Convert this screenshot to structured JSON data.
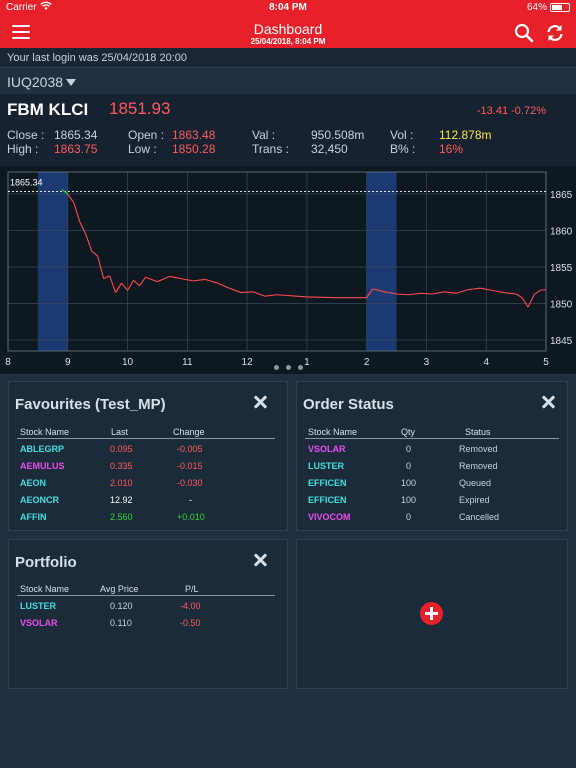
{
  "status_bar": {
    "carrier": "Carrier",
    "time": "8:04 PM",
    "battery": "64%",
    "battery_level": 0.64
  },
  "header": {
    "title": "Dashboard",
    "subtitle": "25/04/2018, 8:04 PM"
  },
  "login_notice": "Your last login was 25/04/2018 20:00",
  "index_selector": "IUQ2038",
  "quote": {
    "name": "FBM KLCI",
    "value": "1851.93",
    "change": "-13.41 -0.72%",
    "close_label": "Close :",
    "close": "1865.34",
    "high_label": "High :",
    "high": "1863.75",
    "open_label": "Open :",
    "open": "1863.48",
    "low_label": "Low :",
    "low": "1850.28",
    "val_label": "Val :",
    "val": "950.508m",
    "trans_label": "Trans :",
    "trans": "32,450",
    "vol_label": "Vol :",
    "vol": "112.878m",
    "bpct_label": "B% :",
    "bpct": "16%"
  },
  "chart_data": {
    "type": "line",
    "x_ticks": [
      "8",
      "9",
      "10",
      "11",
      "12",
      "1",
      "2",
      "3",
      "4",
      "5"
    ],
    "y_ticks": [
      1865,
      1860,
      1855,
      1850,
      1845
    ],
    "ylim": [
      1843.5,
      1868
    ],
    "prev_close_label": "1865.34",
    "prev_close": 1865.34,
    "session_break_hours": [
      [
        8.5,
        9.0
      ],
      [
        14.0,
        14.5
      ]
    ],
    "x_hours": [
      8.9,
      9.0,
      9.1,
      9.2,
      9.3,
      9.4,
      9.5,
      9.6,
      9.7,
      9.8,
      9.9,
      10.0,
      10.1,
      10.2,
      10.3,
      10.5,
      10.7,
      10.9,
      11.1,
      11.3,
      11.5,
      11.7,
      11.9,
      12.1,
      12.3,
      12.5,
      13.0,
      13.5,
      14.0,
      14.1,
      14.3,
      14.5,
      14.7,
      14.9,
      15.1,
      15.3,
      15.5,
      15.7,
      15.9,
      16.1,
      16.3,
      16.5,
      16.6,
      16.7,
      16.8,
      16.9,
      17.0
    ],
    "y_values": [
      1865.6,
      1865.0,
      1863.8,
      1861.2,
      1859.5,
      1857.2,
      1856.5,
      1853.4,
      1853.8,
      1851.5,
      1852.8,
      1851.8,
      1853.2,
      1852.4,
      1853.6,
      1853.0,
      1853.7,
      1853.4,
      1853.1,
      1853.3,
      1852.8,
      1852.1,
      1851.5,
      1851.6,
      1851.0,
      1851.2,
      1850.9,
      1850.8,
      1850.8,
      1852.0,
      1851.6,
      1851.3,
      1851.2,
      1851.4,
      1851.3,
      1851.6,
      1851.4,
      1851.9,
      1852.1,
      1851.8,
      1851.5,
      1851.3,
      1850.8,
      1849.5,
      1851.2,
      1851.8,
      1851.9
    ]
  },
  "favourites": {
    "title": "Favourites (Test_MP)",
    "headers": [
      "Stock Name",
      "Last",
      "Change"
    ],
    "rows": [
      {
        "name": "ABLEGRP",
        "last": "0.095",
        "change": "-0.005",
        "name_color": "cyan",
        "value_color": "red"
      },
      {
        "name": "AEMULUS",
        "last": "0.335",
        "change": "-0.015",
        "name_color": "magenta",
        "value_color": "red"
      },
      {
        "name": "AEON",
        "last": "2.010",
        "change": "-0.030",
        "name_color": "cyan",
        "value_color": "red"
      },
      {
        "name": "AEONCR",
        "last": "12.92",
        "change": "-",
        "name_color": "cyan",
        "value_color": "white"
      },
      {
        "name": "AFFIN",
        "last": "2.560",
        "change": "+0.010",
        "name_color": "cyan",
        "value_color": "green"
      }
    ]
  },
  "order_status": {
    "title": "Order Status",
    "headers": [
      "Stock Name",
      "Qty",
      "Status"
    ],
    "rows": [
      {
        "name": "VSOLAR",
        "qty": "0",
        "status": "Removed",
        "name_color": "magenta"
      },
      {
        "name": "LUSTER",
        "qty": "0",
        "status": "Removed",
        "name_color": "cyan"
      },
      {
        "name": "EFFICEN",
        "qty": "100",
        "status": "Queued",
        "name_color": "cyan"
      },
      {
        "name": "EFFICEN",
        "qty": "100",
        "status": "Expired",
        "name_color": "cyan"
      },
      {
        "name": "VIVOCOM",
        "qty": "0",
        "status": "Cancelled",
        "name_color": "magenta"
      }
    ]
  },
  "portfolio": {
    "title": "Portfolio",
    "headers": [
      "Stock Name",
      "Avg Price",
      "P/L"
    ],
    "rows": [
      {
        "name": "LUSTER",
        "avg": "0.120",
        "pl": "-4.00",
        "name_color": "cyan"
      },
      {
        "name": "VSOLAR",
        "avg": "0.110",
        "pl": "-0.50",
        "name_color": "magenta"
      }
    ]
  },
  "icons": [
    "menu-icon",
    "search-icon",
    "refresh-icon",
    "close-icon",
    "add-icon",
    "wifi-icon",
    "battery-icon",
    "dropdown-icon"
  ],
  "colors": {
    "brand_red": "#e8202a",
    "up": "#35d435",
    "down": "#ff5a5a",
    "cyan": "#3ee0e0",
    "magenta": "#e84cf0",
    "highlight_yellow": "#f6e84a"
  }
}
